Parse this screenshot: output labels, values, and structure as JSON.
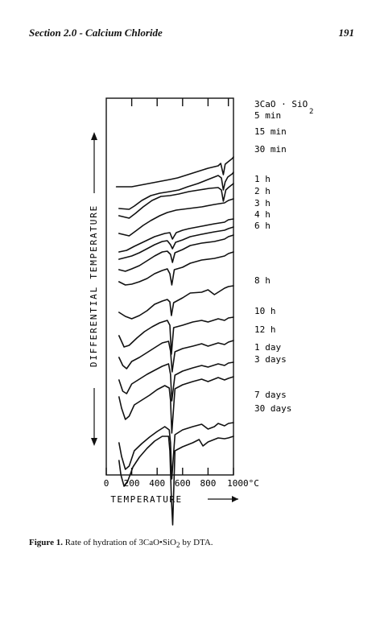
{
  "header": {
    "section_title": "Section 2.0 - Calcium Chloride",
    "page_number": "191"
  },
  "caption": {
    "label": "Figure 1.",
    "text_before_sub": "Rate of hydration of 3CaO•SiO",
    "subscript": "2",
    "text_after_sub": " by DTA."
  },
  "chart_data": {
    "type": "line",
    "title": "",
    "xlabel": "TEMPERATURE",
    "ylabel": "DIFFERENTIAL TEMPERATURE",
    "x_unit": "°C",
    "xlim": [
      0,
      1000
    ],
    "x_ticks": [
      {
        "value": 0,
        "label": "0"
      },
      {
        "value": 200,
        "label": "200"
      },
      {
        "value": 400,
        "label": "400"
      },
      {
        "value": 600,
        "label": "600"
      },
      {
        "value": 800,
        "label": "800"
      },
      {
        "value": 1000,
        "label": "1000°C"
      }
    ],
    "top_ticks": [
      200,
      400,
      600,
      800,
      960
    ],
    "legend_position": "right",
    "series": [
      {
        "name": "3CaO · SiO2 5 min",
        "label_lines": [
          "3CaO · SiO",
          "5 min"
        ],
        "label_sub": "2",
        "x": [
          80,
          200,
          300,
          400,
          500,
          560,
          620,
          700,
          800,
          880,
          900,
          920,
          935,
          950,
          990,
          1000
        ],
        "y": [
          172,
          172,
          169,
          166,
          163,
          161,
          158,
          154,
          149,
          146,
          143,
          157,
          144,
          142,
          137,
          135
        ]
      },
      {
        "name": "15 min",
        "label_lines": [
          "15 min"
        ],
        "x": [
          100,
          180,
          220,
          280,
          350,
          420,
          500,
          570,
          640,
          720,
          800,
          880,
          905,
          920,
          935,
          955,
          990,
          1000
        ],
        "y": [
          199,
          200,
          196,
          189,
          183,
          180,
          178,
          176,
          172,
          168,
          163,
          158,
          161,
          176,
          166,
          160,
          156,
          154
        ]
      },
      {
        "name": "30 min",
        "label_lines": [
          "30 min"
        ],
        "x": [
          100,
          180,
          230,
          290,
          360,
          430,
          500,
          570,
          650,
          730,
          810,
          880,
          905,
          920,
          940,
          960,
          1000
        ],
        "y": [
          208,
          211,
          205,
          197,
          189,
          184,
          183,
          181,
          178,
          176,
          174,
          173,
          176,
          190,
          176,
          173,
          168
        ]
      },
      {
        "name": "1 h",
        "label_lines": [
          "1 h"
        ],
        "x": [
          100,
          180,
          240,
          290,
          350,
          420,
          480,
          550,
          650,
          750,
          850,
          930,
          960,
          1000
        ],
        "y": [
          230,
          233,
          226,
          220,
          214,
          208,
          204,
          201,
          199,
          197,
          194,
          192,
          189,
          187
        ]
      },
      {
        "name": "2 h",
        "label_lines": [
          "2 h"
        ],
        "x": [
          100,
          160,
          220,
          300,
          380,
          460,
          500,
          520,
          550,
          600,
          650,
          750,
          850,
          930,
          960,
          1000
        ],
        "y": [
          253,
          251,
          246,
          240,
          234,
          230,
          229,
          237,
          229,
          226,
          224,
          221,
          218,
          216,
          213,
          212
        ]
      },
      {
        "name": "3 h",
        "label_lines": [
          "3 h"
        ],
        "x": [
          100,
          150,
          200,
          260,
          320,
          380,
          440,
          480,
          505,
          520,
          545,
          600,
          660,
          750,
          850,
          930,
          960,
          1000
        ],
        "y": [
          262,
          260,
          258,
          254,
          249,
          244,
          240,
          239,
          244,
          249,
          241,
          238,
          234,
          231,
          228,
          226,
          224,
          222
        ]
      },
      {
        "name": "4 h",
        "label_lines": [
          "4 h"
        ],
        "x": [
          100,
          150,
          200,
          260,
          320,
          380,
          440,
          480,
          505,
          520,
          540,
          600,
          660,
          750,
          850,
          930,
          960,
          1000
        ],
        "y": [
          275,
          277,
          274,
          270,
          264,
          258,
          253,
          252,
          256,
          266,
          254,
          250,
          245,
          242,
          240,
          237,
          234,
          232
        ]
      },
      {
        "name": "6 h",
        "label_lines": [
          "6 h"
        ],
        "x": [
          100,
          150,
          200,
          260,
          320,
          380,
          440,
          480,
          500,
          515,
          535,
          600,
          660,
          750,
          850,
          930,
          960,
          1000
        ],
        "y": [
          290,
          294,
          293,
          290,
          286,
          280,
          276,
          274,
          280,
          294,
          275,
          272,
          267,
          263,
          261,
          258,
          255,
          253
        ]
      },
      {
        "name": "8 h",
        "label_lines": [
          "8 h"
        ],
        "x": [
          100,
          150,
          200,
          260,
          320,
          380,
          440,
          480,
          500,
          512,
          530,
          600,
          660,
          750,
          800,
          850,
          900,
          930,
          960,
          1000
        ],
        "y": [
          328,
          333,
          336,
          332,
          326,
          318,
          314,
          312,
          315,
          332,
          316,
          310,
          304,
          303,
          300,
          306,
          301,
          298,
          296,
          295
        ]
      },
      {
        "name": "10 h",
        "label_lines": [
          "10 h"
        ],
        "x": [
          100,
          140,
          180,
          240,
          300,
          360,
          420,
          480,
          500,
          512,
          530,
          600,
          680,
          750,
          800,
          880,
          930,
          960,
          1000
        ],
        "y": [
          357,
          371,
          369,
          360,
          352,
          346,
          341,
          338,
          344,
          380,
          347,
          344,
          340,
          338,
          340,
          336,
          338,
          335,
          334
        ]
      },
      {
        "name": "12 h",
        "label_lines": [
          "12 h"
        ],
        "x": [
          100,
          130,
          160,
          200,
          260,
          320,
          380,
          440,
          490,
          505,
          518,
          540,
          600,
          680,
          750,
          800,
          880,
          930,
          960,
          1000
        ],
        "y": [
          384,
          394,
          398,
          389,
          384,
          378,
          372,
          366,
          364,
          376,
          402,
          377,
          373,
          370,
          367,
          370,
          366,
          368,
          365,
          363
        ]
      },
      {
        "name": "1 day",
        "label_lines": [
          "1 day"
        ],
        "x": [
          100,
          130,
          160,
          200,
          260,
          320,
          380,
          440,
          490,
          505,
          515,
          540,
          600,
          680,
          750,
          800,
          880,
          930,
          960,
          1000
        ],
        "y": [
          412,
          426,
          429,
          417,
          411,
          405,
          400,
          395,
          392,
          405,
          438,
          406,
          401,
          397,
          394,
          396,
          392,
          394,
          391,
          390
        ]
      },
      {
        "name": "3 days",
        "label_lines": [
          "3 days"
        ],
        "x": [
          100,
          120,
          150,
          180,
          220,
          280,
          340,
          400,
          460,
          495,
          505,
          515,
          540,
          600,
          680,
          750,
          800,
          880,
          930,
          960,
          1000
        ],
        "y": [
          433,
          447,
          461,
          457,
          443,
          437,
          431,
          424,
          419,
          422,
          437,
          478,
          423,
          418,
          414,
          411,
          414,
          409,
          412,
          410,
          408
        ]
      },
      {
        "name": "7 days",
        "label_lines": [
          "7 days"
        ],
        "x": [
          100,
          120,
          150,
          180,
          220,
          280,
          340,
          400,
          460,
          495,
          505,
          515,
          540,
          600,
          680,
          750,
          800,
          850,
          880,
          930,
          960,
          1000
        ],
        "y": [
          490,
          507,
          523,
          519,
          500,
          491,
          483,
          476,
          470,
          474,
          490,
          535,
          480,
          474,
          470,
          467,
          473,
          470,
          466,
          469,
          466,
          465
        ]
      },
      {
        "name": "30 days",
        "label_lines": [
          "30 days"
        ],
        "x": [
          100,
          115,
          140,
          170,
          210,
          260,
          320,
          380,
          440,
          490,
          500,
          512,
          522,
          540,
          600,
          680,
          730,
          760,
          800,
          880,
          930,
          960,
          1000
        ],
        "y": [
          512,
          530,
          544,
          537,
          520,
          508,
          497,
          488,
          482,
          482,
          500,
          560,
          592,
          500,
          495,
          490,
          486,
          494,
          489,
          484,
          485,
          484,
          482
        ]
      }
    ]
  }
}
